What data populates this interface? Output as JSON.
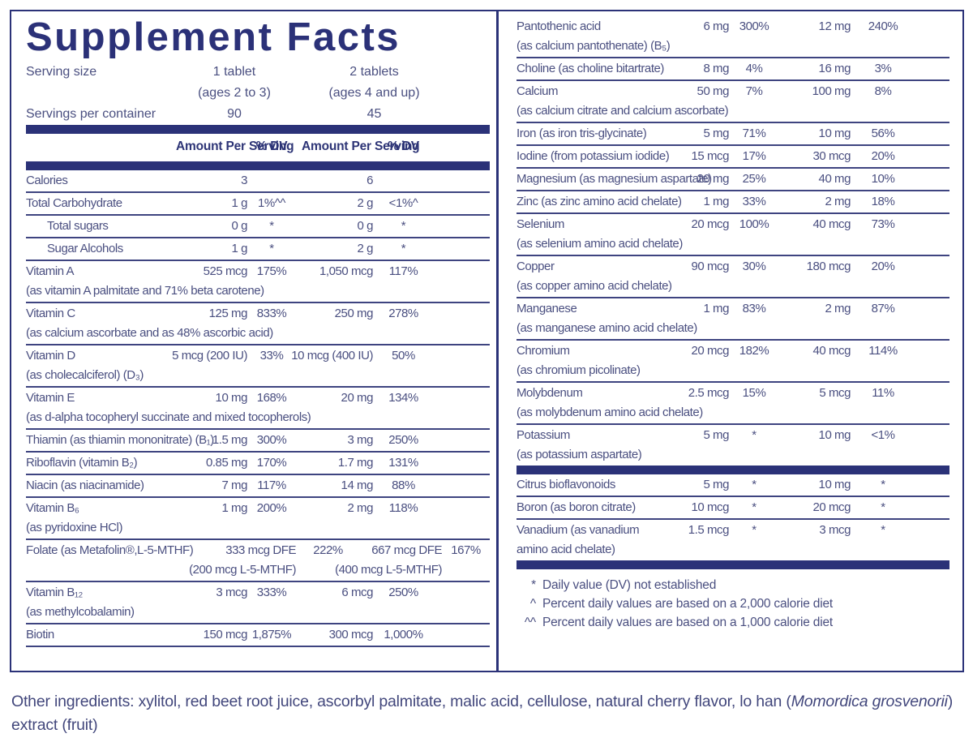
{
  "title": "Supplement Facts",
  "colors": {
    "navy": "#2b3278",
    "text": "#4a4f80",
    "line": "#3e4480"
  },
  "serving": {
    "size_label": "Serving size",
    "col1_size": "1 tablet",
    "col1_ages": "(ages 2 to 3)",
    "col2_size": "2 tablets",
    "col2_ages": "(ages 4 and up)",
    "per_container_label": "Servings per container",
    "col1_servings": "90",
    "col2_servings": "45"
  },
  "header": {
    "amount_label": "Amount Per Serving",
    "dv_label": "% DV"
  },
  "left_rows": [
    {
      "name": "Calories",
      "a1": "3",
      "dv1": "",
      "a2": "6",
      "dv2": ""
    },
    {
      "name": "Total Carbohydrate",
      "a1": "1 g",
      "dv1": "1%^^",
      "a2": "2 g",
      "dv2": "<1%^"
    },
    {
      "name": "Total sugars",
      "indent": true,
      "a1": "0 g",
      "dv1": "*",
      "a2": "0 g",
      "dv2": "*"
    },
    {
      "name": "Sugar Alcohols",
      "indent": true,
      "a1": "1 g",
      "dv1": "*",
      "a2": "2 g",
      "dv2": "*"
    },
    {
      "name": "Vitamin A",
      "sub": "(as vitamin A palmitate and 71% beta carotene)",
      "a1": "525 mcg",
      "dv1": "175%",
      "a2": "1,050 mcg",
      "dv2": "117%"
    },
    {
      "name": "Vitamin C",
      "sub": "(as calcium ascorbate and as 48% ascorbic acid)",
      "a1": "125 mg",
      "dv1": "833%",
      "a2": "250 mg",
      "dv2": "278%"
    },
    {
      "name": "Vitamin D",
      "sub": "(as cholecalciferol) (D₃)",
      "a1": "5 mcg (200 IU)",
      "dv1": "33%",
      "a2": "10 mcg (400 IU)",
      "dv2": "50%"
    },
    {
      "name": "Vitamin E",
      "sub": "(as d-alpha tocopheryl succinate and mixed tocopherols)",
      "a1": "10 mg",
      "dv1": "168%",
      "a2": "20 mg",
      "dv2": "134%"
    },
    {
      "name": "Thiamin (as thiamin mononitrate) (B₁)",
      "a1": "1.5 mg",
      "dv1": "300%",
      "a2": "3 mg",
      "dv2": "250%"
    },
    {
      "name": "Riboflavin (vitamin B₂)",
      "a1": "0.85 mg",
      "dv1": "170%",
      "a2": "1.7 mg",
      "dv2": "131%"
    },
    {
      "name": "Niacin (as niacinamide)",
      "a1": "7 mg",
      "dv1": "117%",
      "a2": "14 mg",
      "dv2": "88%"
    },
    {
      "name": "Vitamin B₆",
      "sub": "(as pyridoxine HCl)",
      "a1": "1 mg",
      "dv1": "200%",
      "a2": "2 mg",
      "dv2": "118%"
    },
    {
      "name": "Folate (as Metafolin®,L-5-MTHF)",
      "shifted": true,
      "a1": "333 mcg DFE",
      "a1_sub": "(200 mcg L-5-MTHF)",
      "dv1": "222%",
      "a2": "667 mcg DFE",
      "a2_sub": "(400 mcg L-5-MTHF)",
      "dv2": "167%"
    },
    {
      "name": "Vitamin B₁₂",
      "sub": "(as methylcobalamin)",
      "a1": "3 mcg",
      "dv1": "333%",
      "a2": "6 mcg",
      "dv2": "250%"
    },
    {
      "name": "Biotin",
      "a1": "150 mcg",
      "dv1": "1,875%",
      "a2": "300 mcg",
      "dv2": "1,000%"
    }
  ],
  "right_rows": [
    {
      "name": "Pantothenic acid",
      "sub": "(as calcium pantothenate) (B₅)",
      "a1": "6 mg",
      "dv1": "300%",
      "a2": "12 mg",
      "dv2": "240%"
    },
    {
      "name": "Choline (as choline bitartrate)",
      "a1": "8 mg",
      "dv1": "4%",
      "a2": "16 mg",
      "dv2": "3%"
    },
    {
      "name": "Calcium",
      "sub": "(as calcium citrate and calcium ascorbate)",
      "a1": "50 mg",
      "dv1": "7%",
      "a2": "100 mg",
      "dv2": "8%"
    },
    {
      "name": "Iron (as iron tris-glycinate)",
      "a1": "5 mg",
      "dv1": "71%",
      "a2": "10 mg",
      "dv2": "56%"
    },
    {
      "name": "Iodine (from potassium iodide)",
      "a1": "15 mcg",
      "dv1": "17%",
      "a2": "30 mcg",
      "dv2": "20%"
    },
    {
      "name": "Magnesium (as magnesium aspartate)",
      "a1": "20 mg",
      "dv1": "25%",
      "a2": "40 mg",
      "dv2": "10%"
    },
    {
      "name": "Zinc (as zinc amino acid chelate)",
      "a1": "1 mg",
      "dv1": "33%",
      "a2": "2 mg",
      "dv2": "18%"
    },
    {
      "name": "Selenium",
      "sub": "(as selenium amino acid chelate)",
      "a1": "20 mcg",
      "dv1": "100%",
      "a2": "40 mcg",
      "dv2": "73%"
    },
    {
      "name": "Copper",
      "sub": "(as copper amino acid chelate)",
      "a1": "90 mcg",
      "dv1": "30%",
      "a2": "180 mcg",
      "dv2": "20%"
    },
    {
      "name": "Manganese",
      "sub": "(as manganese amino acid chelate)",
      "a1": "1 mg",
      "dv1": "83%",
      "a2": "2 mg",
      "dv2": "87%"
    },
    {
      "name": "Chromium",
      "sub": "(as chromium picolinate)",
      "a1": "20 mcg",
      "dv1": "182%",
      "a2": "40 mcg",
      "dv2": "114%"
    },
    {
      "name": "Molybdenum",
      "sub": "(as molybdenum amino acid chelate)",
      "a1": "2.5 mcg",
      "dv1": "15%",
      "a2": "5 mcg",
      "dv2": "11%"
    },
    {
      "name": "Potassium",
      "sub": "(as potassium aspartate)",
      "a1": "5 mg",
      "dv1": "*",
      "a2": "10 mg",
      "dv2": "<1%",
      "bar_after": true
    },
    {
      "name": "Citrus bioflavonoids",
      "a1": "5 mg",
      "dv1": "*",
      "a2": "10 mg",
      "dv2": "*"
    },
    {
      "name": "Boron (as boron citrate)",
      "a1": "10 mcg",
      "dv1": "*",
      "a2": "20 mcg",
      "dv2": "*"
    },
    {
      "name": "Vanadium (as vanadium",
      "sub": "amino acid chelate)",
      "a1": "1.5 mcg",
      "dv1": "*",
      "a2": "3 mcg",
      "dv2": "*",
      "bar_after": true
    }
  ],
  "footnotes": [
    {
      "sym": "*",
      "text": "Daily value (DV) not established"
    },
    {
      "sym": "^",
      "text": "Percent daily values are based on a 2,000 calorie diet"
    },
    {
      "sym": "^^",
      "text": "Percent daily values are based on a 1,000 calorie diet"
    }
  ],
  "other_ingredients": {
    "prefix": "Other ingredients: xylitol, red beet root juice, ascorbyl palmitate, malic acid, cellulose, natural cherry flavor, lo han (",
    "italic": "Momordica grosvenorii",
    "suffix": ") extract (fruit)"
  }
}
